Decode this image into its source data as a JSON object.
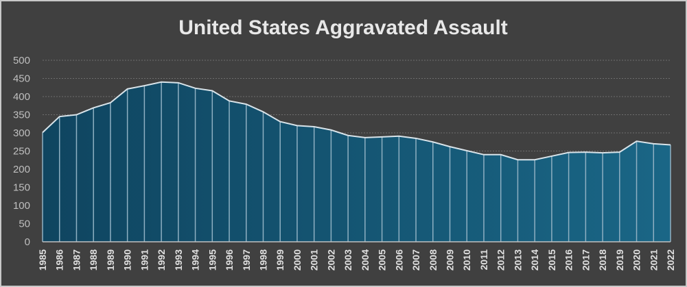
{
  "chart_data": {
    "type": "area",
    "title": "United States Aggravated Assault",
    "xlabel": "",
    "ylabel": "",
    "ylim": [
      0,
      500
    ],
    "yticks": [
      0,
      50,
      100,
      150,
      200,
      250,
      300,
      350,
      400,
      450,
      500
    ],
    "grid": true,
    "x": [
      1985,
      1986,
      1987,
      1988,
      1989,
      1990,
      1991,
      1992,
      1993,
      1994,
      1995,
      1996,
      1997,
      1998,
      1999,
      2000,
      2001,
      2002,
      2003,
      2004,
      2005,
      2006,
      2007,
      2008,
      2009,
      2010,
      2011,
      2012,
      2013,
      2014,
      2015,
      2016,
      2017,
      2018,
      2019,
      2020,
      2021,
      2022
    ],
    "values": [
      301,
      345,
      350,
      369,
      383,
      421,
      430,
      440,
      438,
      423,
      416,
      388,
      379,
      358,
      331,
      320,
      317,
      308,
      293,
      287,
      289,
      291,
      285,
      275,
      262,
      251,
      240,
      240,
      226,
      226,
      236,
      246,
      247,
      245,
      247,
      277,
      270,
      267
    ],
    "colors": {
      "background": "#404040",
      "fill_left": "#0f4560",
      "fill_right": "#1a6686",
      "line": "#d9e4ea",
      "drop_lines": "#8fb0c2"
    }
  }
}
